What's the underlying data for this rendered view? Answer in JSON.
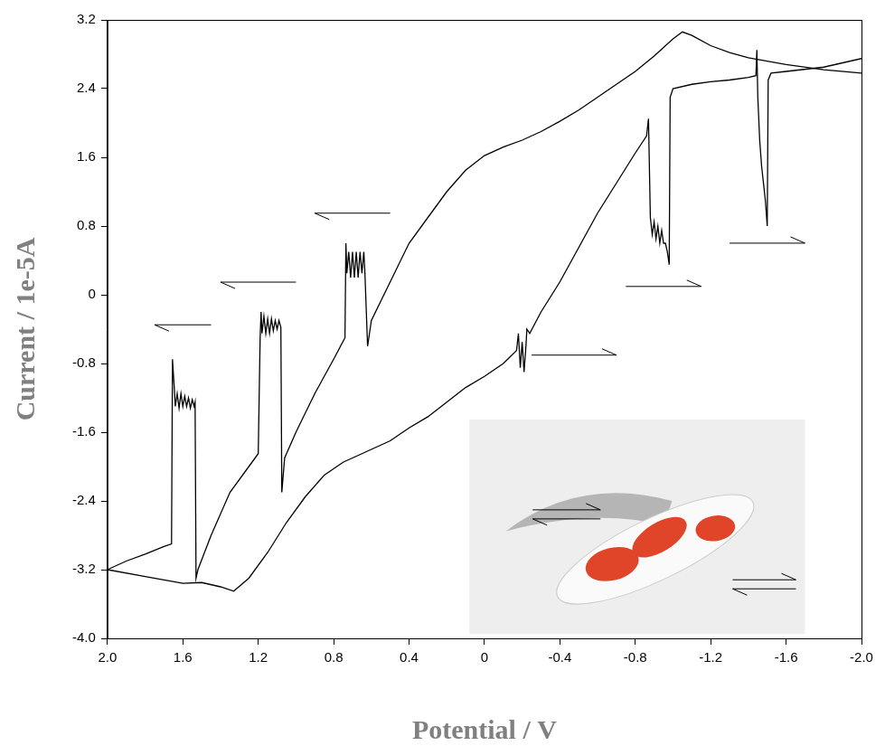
{
  "chart_data": {
    "type": "line",
    "x_label": "Potential / V",
    "y_label": "Current / 1e-5A",
    "xlim": [
      2.0,
      -2.0
    ],
    "xticks": [
      {
        "value": 2,
        "label": "2.0"
      },
      1.6,
      1.2,
      0.8,
      0.4,
      0,
      -0.4,
      -0.8,
      -1.2,
      -1.6,
      {
        "value": -2,
        "label": "-2.0"
      }
    ],
    "ylim": [
      -4.0,
      3.2
    ],
    "yticks": [
      {
        "value": -4,
        "label": "-4.0"
      },
      -3.2,
      -2.4,
      -1.6,
      -0.8,
      0,
      0.8,
      1.6,
      2.4,
      3.2
    ],
    "grid": false,
    "series": [
      {
        "color": "#000000",
        "x": [
          2.0,
          1.9,
          1.8,
          1.7,
          1.66,
          1.655,
          1.645,
          1.64,
          1.63,
          1.62,
          1.61,
          1.6,
          1.59,
          1.58,
          1.57,
          1.56,
          1.55,
          1.54,
          1.535,
          1.53,
          1.52,
          1.45,
          1.35,
          1.25,
          1.2,
          1.19,
          1.185,
          1.18,
          1.17,
          1.16,
          1.15,
          1.14,
          1.13,
          1.12,
          1.11,
          1.1,
          1.09,
          1.08,
          1.075,
          1.06,
          1.0,
          0.9,
          0.8,
          0.74,
          0.735,
          0.73,
          0.72,
          0.71,
          0.7,
          0.69,
          0.68,
          0.67,
          0.66,
          0.65,
          0.64,
          0.635,
          0.62,
          0.6,
          0.5,
          0.4,
          0.3,
          0.2,
          0.1,
          0.0,
          -0.1,
          -0.2,
          -0.3,
          -0.4,
          -0.5,
          -0.6,
          -0.7,
          -0.8,
          -0.9,
          -1.0,
          -1.05,
          -1.1,
          -1.2,
          -1.3,
          -1.4,
          -1.6,
          -1.8,
          -2.0
        ],
        "values": [
          -3.2,
          -3.1,
          -3.02,
          -2.93,
          -2.9,
          -0.75,
          -1.1,
          -1.3,
          -1.15,
          -1.32,
          -1.15,
          -1.3,
          -1.18,
          -1.3,
          -1.2,
          -1.32,
          -1.22,
          -1.3,
          -1.25,
          -3.3,
          -3.2,
          -2.8,
          -2.3,
          -2.0,
          -1.85,
          -0.5,
          -0.2,
          -0.45,
          -0.25,
          -0.45,
          -0.28,
          -0.45,
          -0.28,
          -0.42,
          -0.3,
          -0.4,
          -0.3,
          -0.38,
          -2.3,
          -1.9,
          -1.6,
          -1.15,
          -0.75,
          -0.5,
          0.6,
          0.25,
          0.5,
          0.2,
          0.5,
          0.2,
          0.5,
          0.2,
          0.5,
          0.25,
          0.5,
          0.3,
          -0.6,
          -0.3,
          0.15,
          0.6,
          0.9,
          1.2,
          1.45,
          1.62,
          1.72,
          1.8,
          1.9,
          2.02,
          2.15,
          2.3,
          2.45,
          2.6,
          2.78,
          2.98,
          3.06,
          3.02,
          2.9,
          2.82,
          2.76,
          2.68,
          2.62,
          2.58
        ]
      },
      {
        "color": "#000000",
        "x": [
          2.0,
          1.8,
          1.6,
          1.5,
          1.4,
          1.33,
          1.25,
          1.15,
          1.05,
          0.95,
          0.85,
          0.75,
          0.6,
          0.5,
          0.4,
          0.3,
          0.2,
          0.1,
          0.0,
          -0.1,
          -0.17,
          -0.18,
          -0.19,
          -0.2,
          -0.21,
          -0.22,
          -0.225,
          -0.24,
          -0.3,
          -0.4,
          -0.5,
          -0.6,
          -0.7,
          -0.8,
          -0.86,
          -0.87,
          -0.88,
          -0.89,
          -0.9,
          -0.91,
          -0.92,
          -0.93,
          -0.94,
          -0.95,
          -0.96,
          -0.97,
          -0.98,
          -0.985,
          -1.0,
          -1.1,
          -1.2,
          -1.3,
          -1.4,
          -1.44,
          -1.445,
          -1.45,
          -1.46,
          -1.47,
          -1.48,
          -1.49,
          -1.5,
          -1.505,
          -1.52,
          -1.6,
          -1.8,
          -2.0
        ],
        "values": [
          -3.2,
          -3.28,
          -3.36,
          -3.35,
          -3.4,
          -3.45,
          -3.3,
          -3.0,
          -2.65,
          -2.35,
          -2.1,
          -1.95,
          -1.8,
          -1.7,
          -1.55,
          -1.42,
          -1.25,
          -1.08,
          -0.95,
          -0.8,
          -0.65,
          -0.45,
          -0.85,
          -0.55,
          -0.9,
          -0.6,
          -0.4,
          -0.45,
          -0.2,
          0.15,
          0.55,
          0.95,
          1.3,
          1.65,
          1.85,
          2.05,
          0.9,
          0.7,
          0.85,
          0.65,
          0.8,
          0.6,
          0.75,
          0.6,
          0.6,
          0.5,
          0.35,
          2.3,
          2.4,
          2.45,
          2.48,
          2.5,
          2.53,
          2.55,
          2.85,
          2.3,
          1.8,
          1.5,
          1.3,
          1.1,
          0.8,
          2.5,
          2.58,
          2.6,
          2.65,
          2.75
        ]
      }
    ]
  }
}
